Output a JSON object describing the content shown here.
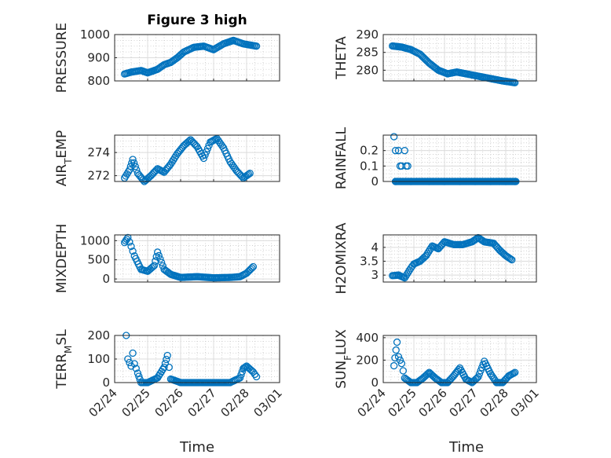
{
  "figure": {
    "title": "Figure 3 high",
    "xlabel": "Time"
  },
  "chart_data": [
    {
      "type": "scatter",
      "ylabel": "PRESSURE",
      "ylim": [
        800,
        1000
      ],
      "yticks": [
        "800",
        "900",
        "1000"
      ],
      "ytick_values": [
        800,
        900,
        1000
      ],
      "x_ticks": [
        "02/24",
        "02/25",
        "02/26",
        "02/27",
        "02/28",
        "03/01"
      ],
      "xlim": [
        "02/24",
        "03/01"
      ],
      "grid": true,
      "show_xtick_labels": false,
      "points": [
        [
          0.3,
          830
        ],
        [
          0.5,
          838
        ],
        [
          0.8,
          845
        ],
        [
          1.0,
          835
        ],
        [
          1.3,
          850
        ],
        [
          1.5,
          870
        ],
        [
          1.7,
          880
        ],
        [
          1.9,
          900
        ],
        [
          2.1,
          925
        ],
        [
          2.4,
          945
        ],
        [
          2.7,
          950
        ],
        [
          3.0,
          935
        ],
        [
          3.3,
          960
        ],
        [
          3.6,
          975
        ],
        [
          3.9,
          960
        ],
        [
          4.3,
          950
        ]
      ]
    },
    {
      "type": "scatter",
      "ylabel": "THETA",
      "ylim": [
        277,
        290
      ],
      "yticks": [
        "280",
        "285",
        "290"
      ],
      "ytick_values": [
        280,
        285,
        290
      ],
      "x_ticks": [
        "02/24",
        "02/25",
        "02/26",
        "02/27",
        "02/28",
        "03/01"
      ],
      "xlim": [
        "02/24",
        "03/01"
      ],
      "grid": true,
      "show_xtick_labels": false,
      "points": [
        [
          0.3,
          286.8
        ],
        [
          0.6,
          286.5
        ],
        [
          0.9,
          285.8
        ],
        [
          1.2,
          284.5
        ],
        [
          1.5,
          282
        ],
        [
          1.8,
          280
        ],
        [
          2.1,
          279
        ],
        [
          2.4,
          279.5
        ],
        [
          2.7,
          279
        ],
        [
          3.0,
          278.5
        ],
        [
          3.3,
          278
        ],
        [
          3.6,
          277.5
        ],
        [
          3.9,
          277
        ],
        [
          4.3,
          276.5
        ]
      ]
    },
    {
      "type": "scatter",
      "ylabel": "AIR_TEMP",
      "ylim": [
        271.5,
        275.5
      ],
      "yticks": [
        "272",
        "274"
      ],
      "ytick_values": [
        272,
        274
      ],
      "x_ticks": [
        "02/24",
        "02/25",
        "02/26",
        "02/27",
        "02/28",
        "03/01"
      ],
      "xlim": [
        "02/24",
        "03/01"
      ],
      "grid": true,
      "show_xtick_labels": false,
      "points": [
        [
          0.3,
          271.8
        ],
        [
          0.45,
          272.5
        ],
        [
          0.55,
          273.4
        ],
        [
          0.7,
          272.2
        ],
        [
          0.9,
          271.5
        ],
        [
          1.1,
          272
        ],
        [
          1.3,
          272.6
        ],
        [
          1.5,
          272.3
        ],
        [
          1.7,
          273
        ],
        [
          1.9,
          273.9
        ],
        [
          2.1,
          274.6
        ],
        [
          2.3,
          275.1
        ],
        [
          2.5,
          274.5
        ],
        [
          2.7,
          273.5
        ],
        [
          2.9,
          274.9
        ],
        [
          3.1,
          275.2
        ],
        [
          3.3,
          274.4
        ],
        [
          3.5,
          273.2
        ],
        [
          3.7,
          272.4
        ],
        [
          3.9,
          271.8
        ],
        [
          4.1,
          272.2
        ]
      ]
    },
    {
      "type": "scatter",
      "ylabel": "RAINFALL",
      "ylim": [
        0,
        0.3
      ],
      "yticks": [
        "0",
        "0.1",
        "0.2"
      ],
      "ytick_values": [
        0,
        0.1,
        0.2
      ],
      "x_ticks": [
        "02/24",
        "02/25",
        "02/26",
        "02/27",
        "02/28",
        "03/01"
      ],
      "xlim": [
        "02/24",
        "03/01"
      ],
      "grid": true,
      "show_xtick_labels": false,
      "points": [
        [
          0.35,
          0.29
        ],
        [
          0.4,
          0.2
        ],
        [
          0.5,
          0.2
        ],
        [
          0.55,
          0.1
        ],
        [
          0.6,
          0.1
        ],
        [
          0.7,
          0.2
        ],
        [
          0.75,
          0.1
        ],
        [
          0.8,
          0.1
        ],
        [
          0.4,
          0
        ],
        [
          0.9,
          0
        ],
        [
          1.5,
          0
        ],
        [
          2.0,
          0
        ],
        [
          2.5,
          0
        ],
        [
          3.0,
          0
        ],
        [
          3.5,
          0
        ],
        [
          4.0,
          0
        ],
        [
          4.3,
          0
        ]
      ]
    },
    {
      "type": "scatter",
      "ylabel": "MIXDEPTH",
      "ylim": [
        -80,
        1150
      ],
      "yticks": [
        "0",
        "500",
        "1000"
      ],
      "ytick_values": [
        0,
        500,
        1000
      ],
      "x_ticks": [
        "02/24",
        "02/25",
        "02/26",
        "02/27",
        "02/28",
        "03/01"
      ],
      "xlim": [
        "02/24",
        "03/01"
      ],
      "grid": true,
      "show_xtick_labels": false,
      "points": [
        [
          0.3,
          950
        ],
        [
          0.4,
          1080
        ],
        [
          0.5,
          850
        ],
        [
          0.6,
          600
        ],
        [
          0.8,
          250
        ],
        [
          1.0,
          200
        ],
        [
          1.2,
          350
        ],
        [
          1.3,
          700
        ],
        [
          1.5,
          250
        ],
        [
          1.7,
          120
        ],
        [
          2.0,
          40
        ],
        [
          2.5,
          60
        ],
        [
          3.0,
          30
        ],
        [
          3.5,
          40
        ],
        [
          3.8,
          60
        ],
        [
          4.0,
          150
        ],
        [
          4.2,
          320
        ]
      ]
    },
    {
      "type": "scatter",
      "ylabel": "H2OMIXRA",
      "ylim": [
        2.75,
        4.45
      ],
      "yticks": [
        "3",
        "3.5",
        "4"
      ],
      "ytick_values": [
        3,
        3.5,
        4
      ],
      "x_ticks": [
        "02/24",
        "02/25",
        "02/26",
        "02/27",
        "02/28",
        "03/01"
      ],
      "xlim": [
        "02/24",
        "03/01"
      ],
      "grid": true,
      "show_xtick_labels": false,
      "points": [
        [
          0.3,
          2.98
        ],
        [
          0.5,
          3.0
        ],
        [
          0.7,
          2.9
        ],
        [
          0.9,
          3.25
        ],
        [
          1.0,
          3.4
        ],
        [
          1.2,
          3.5
        ],
        [
          1.4,
          3.7
        ],
        [
          1.6,
          4.05
        ],
        [
          1.8,
          3.95
        ],
        [
          2.0,
          4.2
        ],
        [
          2.3,
          4.1
        ],
        [
          2.6,
          4.1
        ],
        [
          2.9,
          4.2
        ],
        [
          3.1,
          4.35
        ],
        [
          3.3,
          4.2
        ],
        [
          3.6,
          4.15
        ],
        [
          3.8,
          3.9
        ],
        [
          4.0,
          3.7
        ],
        [
          4.2,
          3.55
        ]
      ]
    },
    {
      "type": "scatter",
      "ylabel": "TERR_MSL",
      "ylim": [
        0,
        200
      ],
      "yticks": [
        "0",
        "100",
        "200"
      ],
      "ytick_values": [
        0,
        100,
        200
      ],
      "x_ticks": [
        "02/24",
        "02/25",
        "02/26",
        "02/27",
        "02/28",
        "03/01"
      ],
      "xlim": [
        "02/24",
        "03/01"
      ],
      "grid": true,
      "show_xtick_labels": true,
      "points": [
        [
          0.35,
          200
        ],
        [
          0.4,
          100
        ],
        [
          0.5,
          70
        ],
        [
          0.55,
          125
        ],
        [
          0.6,
          80
        ],
        [
          0.7,
          40
        ],
        [
          0.8,
          0
        ],
        [
          1.0,
          0
        ],
        [
          1.3,
          20
        ],
        [
          1.5,
          65
        ],
        [
          1.6,
          115
        ],
        [
          1.7,
          15
        ],
        [
          2.0,
          0
        ],
        [
          2.5,
          0
        ],
        [
          3.0,
          0
        ],
        [
          3.5,
          0
        ],
        [
          3.8,
          20
        ],
        [
          3.9,
          60
        ],
        [
          4.0,
          70
        ],
        [
          4.2,
          45
        ],
        [
          4.3,
          25
        ]
      ]
    },
    {
      "type": "scatter",
      "ylabel": "SUN_FLUX",
      "ylim": [
        0,
        420
      ],
      "yticks": [
        "0",
        "200",
        "400"
      ],
      "ytick_values": [
        0,
        200,
        400
      ],
      "x_ticks": [
        "02/24",
        "02/25",
        "02/26",
        "02/27",
        "02/28",
        "03/01"
      ],
      "xlim": [
        "02/24",
        "03/01"
      ],
      "grid": true,
      "show_xtick_labels": true,
      "points": [
        [
          0.35,
          150
        ],
        [
          0.45,
          360
        ],
        [
          0.5,
          230
        ],
        [
          0.6,
          170
        ],
        [
          0.7,
          40
        ],
        [
          0.9,
          0
        ],
        [
          1.1,
          0
        ],
        [
          1.3,
          40
        ],
        [
          1.5,
          90
        ],
        [
          1.7,
          40
        ],
        [
          1.9,
          0
        ],
        [
          2.1,
          0
        ],
        [
          2.3,
          60
        ],
        [
          2.5,
          130
        ],
        [
          2.7,
          30
        ],
        [
          2.9,
          0
        ],
        [
          3.1,
          50
        ],
        [
          3.3,
          190
        ],
        [
          3.5,
          80
        ],
        [
          3.7,
          0
        ],
        [
          3.9,
          0
        ],
        [
          4.1,
          60
        ],
        [
          4.3,
          90
        ]
      ]
    }
  ]
}
